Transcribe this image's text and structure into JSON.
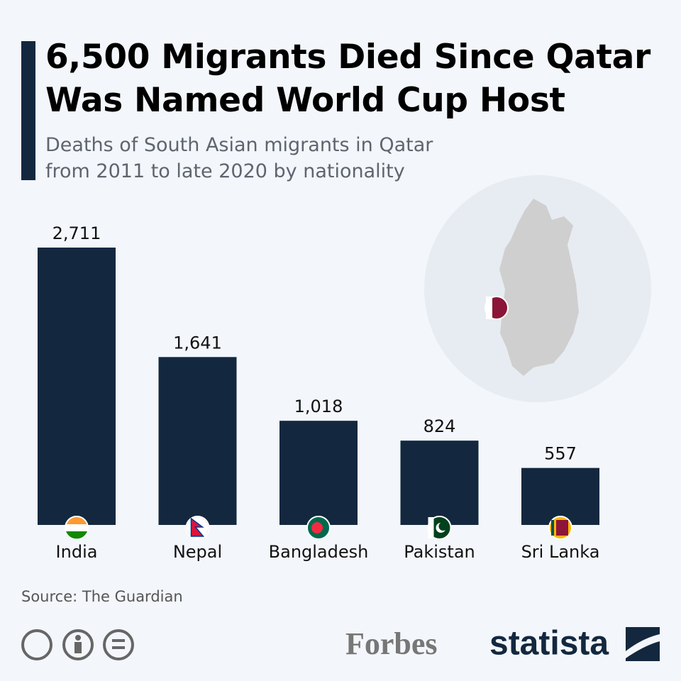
{
  "chart_data": {
    "type": "bar",
    "title": "6,500 Migrants Died Since Qatar Was Named World Cup Host",
    "subtitle": "Deaths of South Asian migrants in Qatar from 2011 to late 2020 by nationality",
    "categories": [
      "India",
      "Nepal",
      "Bangladesh",
      "Pakistan",
      "Sri Lanka"
    ],
    "values": [
      2711,
      1641,
      1018,
      824,
      557
    ],
    "value_labels": [
      "2,711",
      "1,641",
      "1,018",
      "824",
      "557"
    ],
    "color": "#13283f",
    "source": "Source: The Guardian",
    "logos": [
      "Forbes",
      "statista"
    ]
  }
}
